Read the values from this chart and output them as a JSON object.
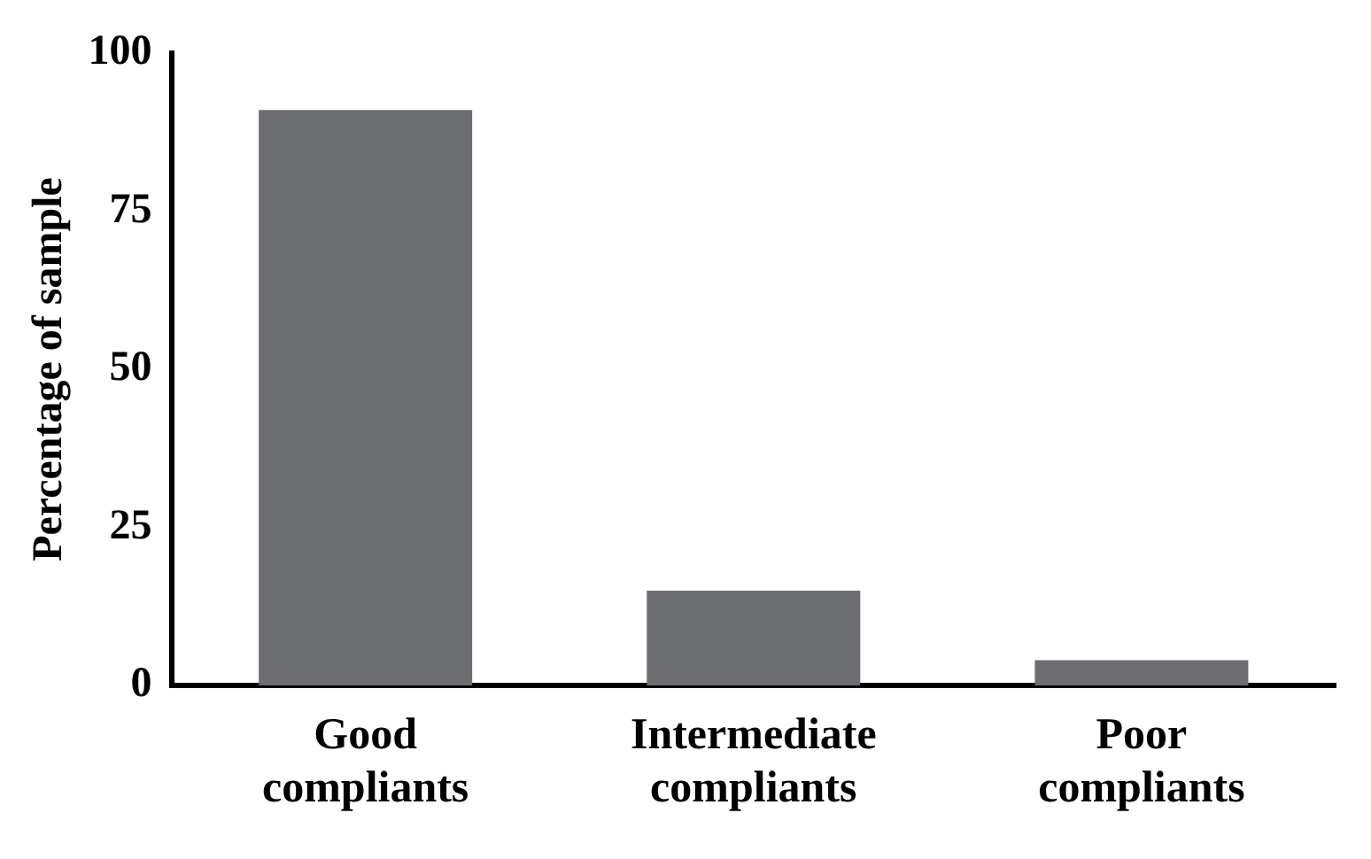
{
  "chart_data": {
    "type": "bar",
    "ylabel": "Percentage of sample",
    "categories": [
      "Good compliants",
      "Intermediate compliants",
      "Poor compliants"
    ],
    "values": [
      91,
      15,
      4
    ],
    "color": "#6d6e71",
    "ylim": [
      0,
      100
    ],
    "yticks": [
      0,
      25,
      50,
      75,
      100
    ],
    "grid": false,
    "legend": false
  }
}
